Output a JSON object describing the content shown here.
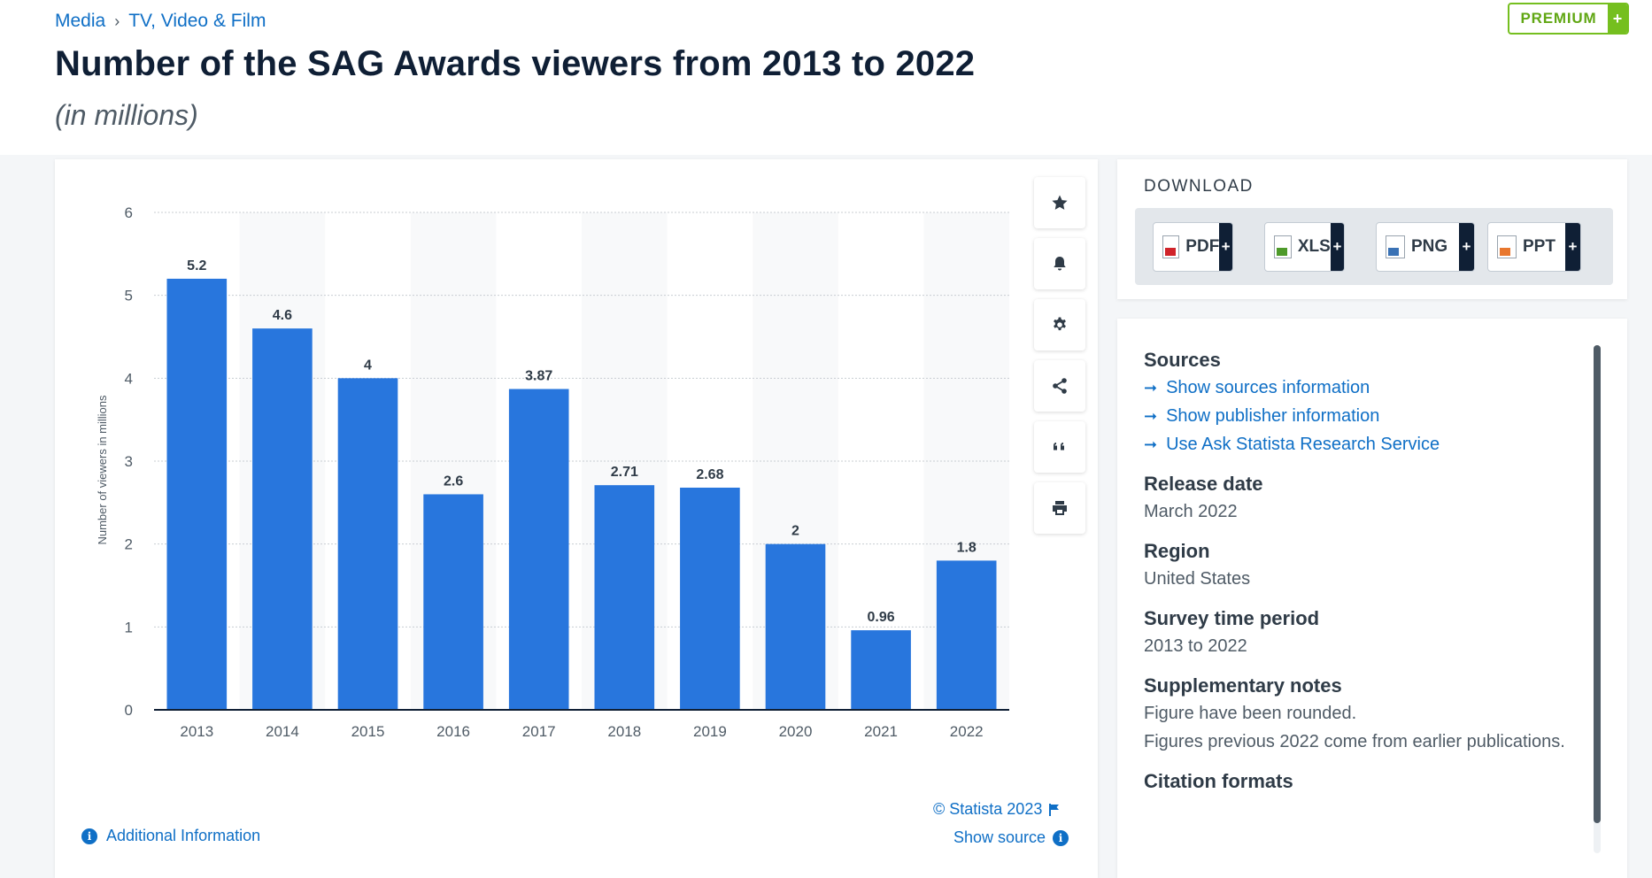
{
  "breadcrumb": {
    "items": [
      "Media",
      "TV, Video & Film"
    ],
    "separator": "›"
  },
  "header": {
    "title": "Number of the SAG Awards viewers from 2013 to 2022",
    "subtitle": "(in millions)",
    "premium_label": "PREMIUM",
    "premium_plus": "+"
  },
  "chart_data": {
    "type": "bar",
    "categories": [
      "2013",
      "2014",
      "2015",
      "2016",
      "2017",
      "2018",
      "2019",
      "2020",
      "2021",
      "2022"
    ],
    "values": [
      5.2,
      4.6,
      4,
      2.6,
      3.87,
      2.71,
      2.68,
      2,
      0.96,
      1.8
    ],
    "data_labels": [
      "5.2",
      "4.6",
      "4",
      "2.6",
      "3.87",
      "2.71",
      "2.68",
      "2",
      "0.96",
      "1.8"
    ],
    "ylabel": "Number of viewers in millions",
    "xlabel": "",
    "ylim": [
      0,
      6
    ],
    "yticks": [
      "0",
      "1",
      "2",
      "3",
      "4",
      "5",
      "6"
    ],
    "bar_color": "#2876dd",
    "grid": true
  },
  "chart_footer": {
    "copyright": "© Statista 2023",
    "show_source": "Show source",
    "additional_info": "Additional Information"
  },
  "tools": [
    "star-icon",
    "bell-icon",
    "gear-icon",
    "share-icon",
    "quote-icon",
    "print-icon"
  ],
  "download": {
    "title": "DOWNLOAD",
    "buttons": [
      {
        "label": "PDF",
        "plus": "+",
        "color": "#d0232a"
      },
      {
        "label": "XLS",
        "plus": "+",
        "color": "#4e9a2a"
      },
      {
        "label": "PNG",
        "plus": "+",
        "color": "#3a72b5"
      },
      {
        "label": "PPT",
        "plus": "+",
        "color": "#e8772e"
      }
    ]
  },
  "info": {
    "sources_heading": "Sources",
    "links": [
      "Show sources information",
      "Show publisher information",
      "Use Ask Statista Research Service"
    ],
    "release_heading": "Release date",
    "release_value": "March 2022",
    "region_heading": "Region",
    "region_value": "United States",
    "survey_heading": "Survey time period",
    "survey_value": "2013 to 2022",
    "notes_heading": "Supplementary notes",
    "notes_1": "Figure have been rounded.",
    "notes_2": "Figures previous 2022 come from earlier publications.",
    "citation_heading": "Citation formats"
  }
}
